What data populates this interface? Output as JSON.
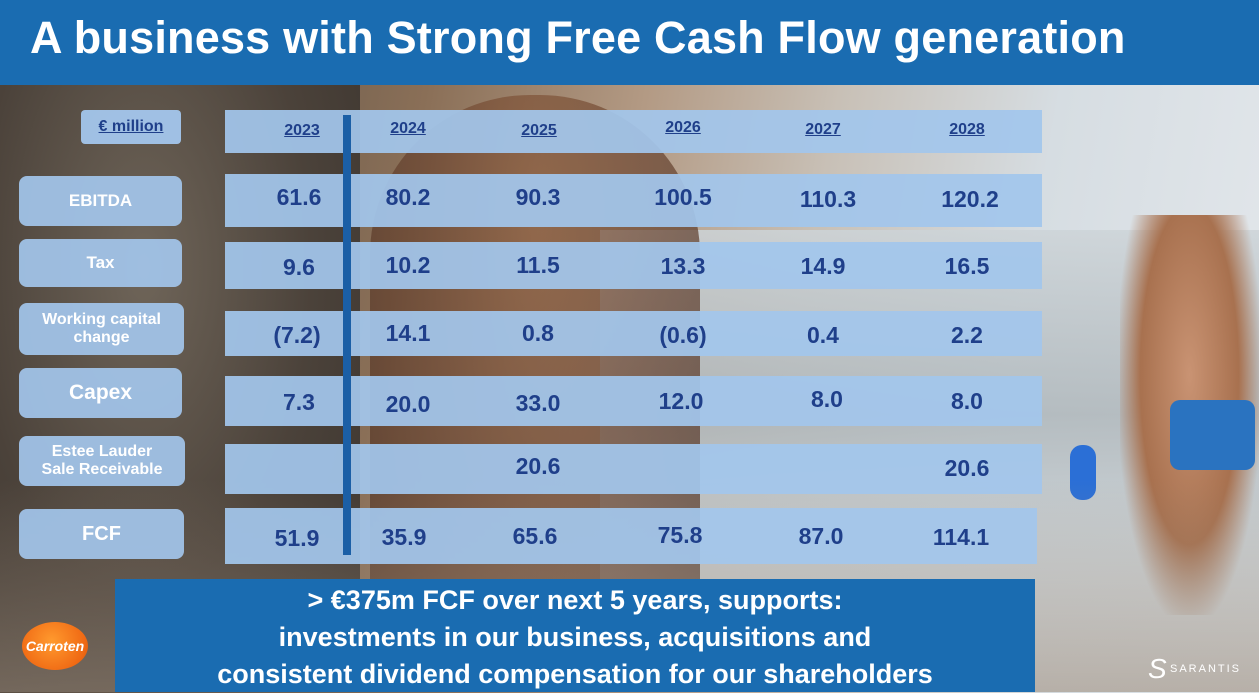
{
  "title": "A business with Strong Free Cash Flow generation",
  "unit_label": "€ million",
  "years": [
    "2023",
    "2024",
    "2025",
    "2026",
    "2027",
    "2028"
  ],
  "rows": {
    "ebitda": {
      "label": "EBITDA",
      "values": [
        "61.6",
        "80.2",
        "90.3",
        "100.5",
        "110.3",
        "120.2"
      ]
    },
    "tax": {
      "label": "Tax",
      "values": [
        "9.6",
        "10.2",
        "11.5",
        "13.3",
        "14.9",
        "16.5"
      ]
    },
    "wc": {
      "label_line1": "Working capital",
      "label_line2": "change",
      "values": [
        "(7.2)",
        "14.1",
        "0.8",
        "(0.6)",
        "0.4",
        "2.2"
      ]
    },
    "capex": {
      "label": "Capex",
      "values": [
        "7.3",
        "20.0",
        "33.0",
        "12.0",
        "8.0",
        "8.0"
      ]
    },
    "esteelauder": {
      "label_line1": "Estee Lauder",
      "label_line2": "Sale Receivable",
      "values": [
        "",
        "",
        "20.6",
        "",
        "",
        "20.6"
      ]
    },
    "fcf": {
      "label": "FCF",
      "values": [
        "51.9",
        "35.9",
        "65.6",
        "75.8",
        "87.0",
        "114.1"
      ]
    }
  },
  "banner": {
    "line1": "> €375m FCF over next 5 years, supports:",
    "line2": "investments in our business, acquisitions and",
    "line3": "consistent dividend compensation for our shareholders"
  },
  "logos": {
    "left": "Carroten",
    "right": "SARANTIS"
  },
  "colors": {
    "header": "#1a6cb1",
    "box": "#a3c6ec",
    "text": "#1f3f8a"
  }
}
